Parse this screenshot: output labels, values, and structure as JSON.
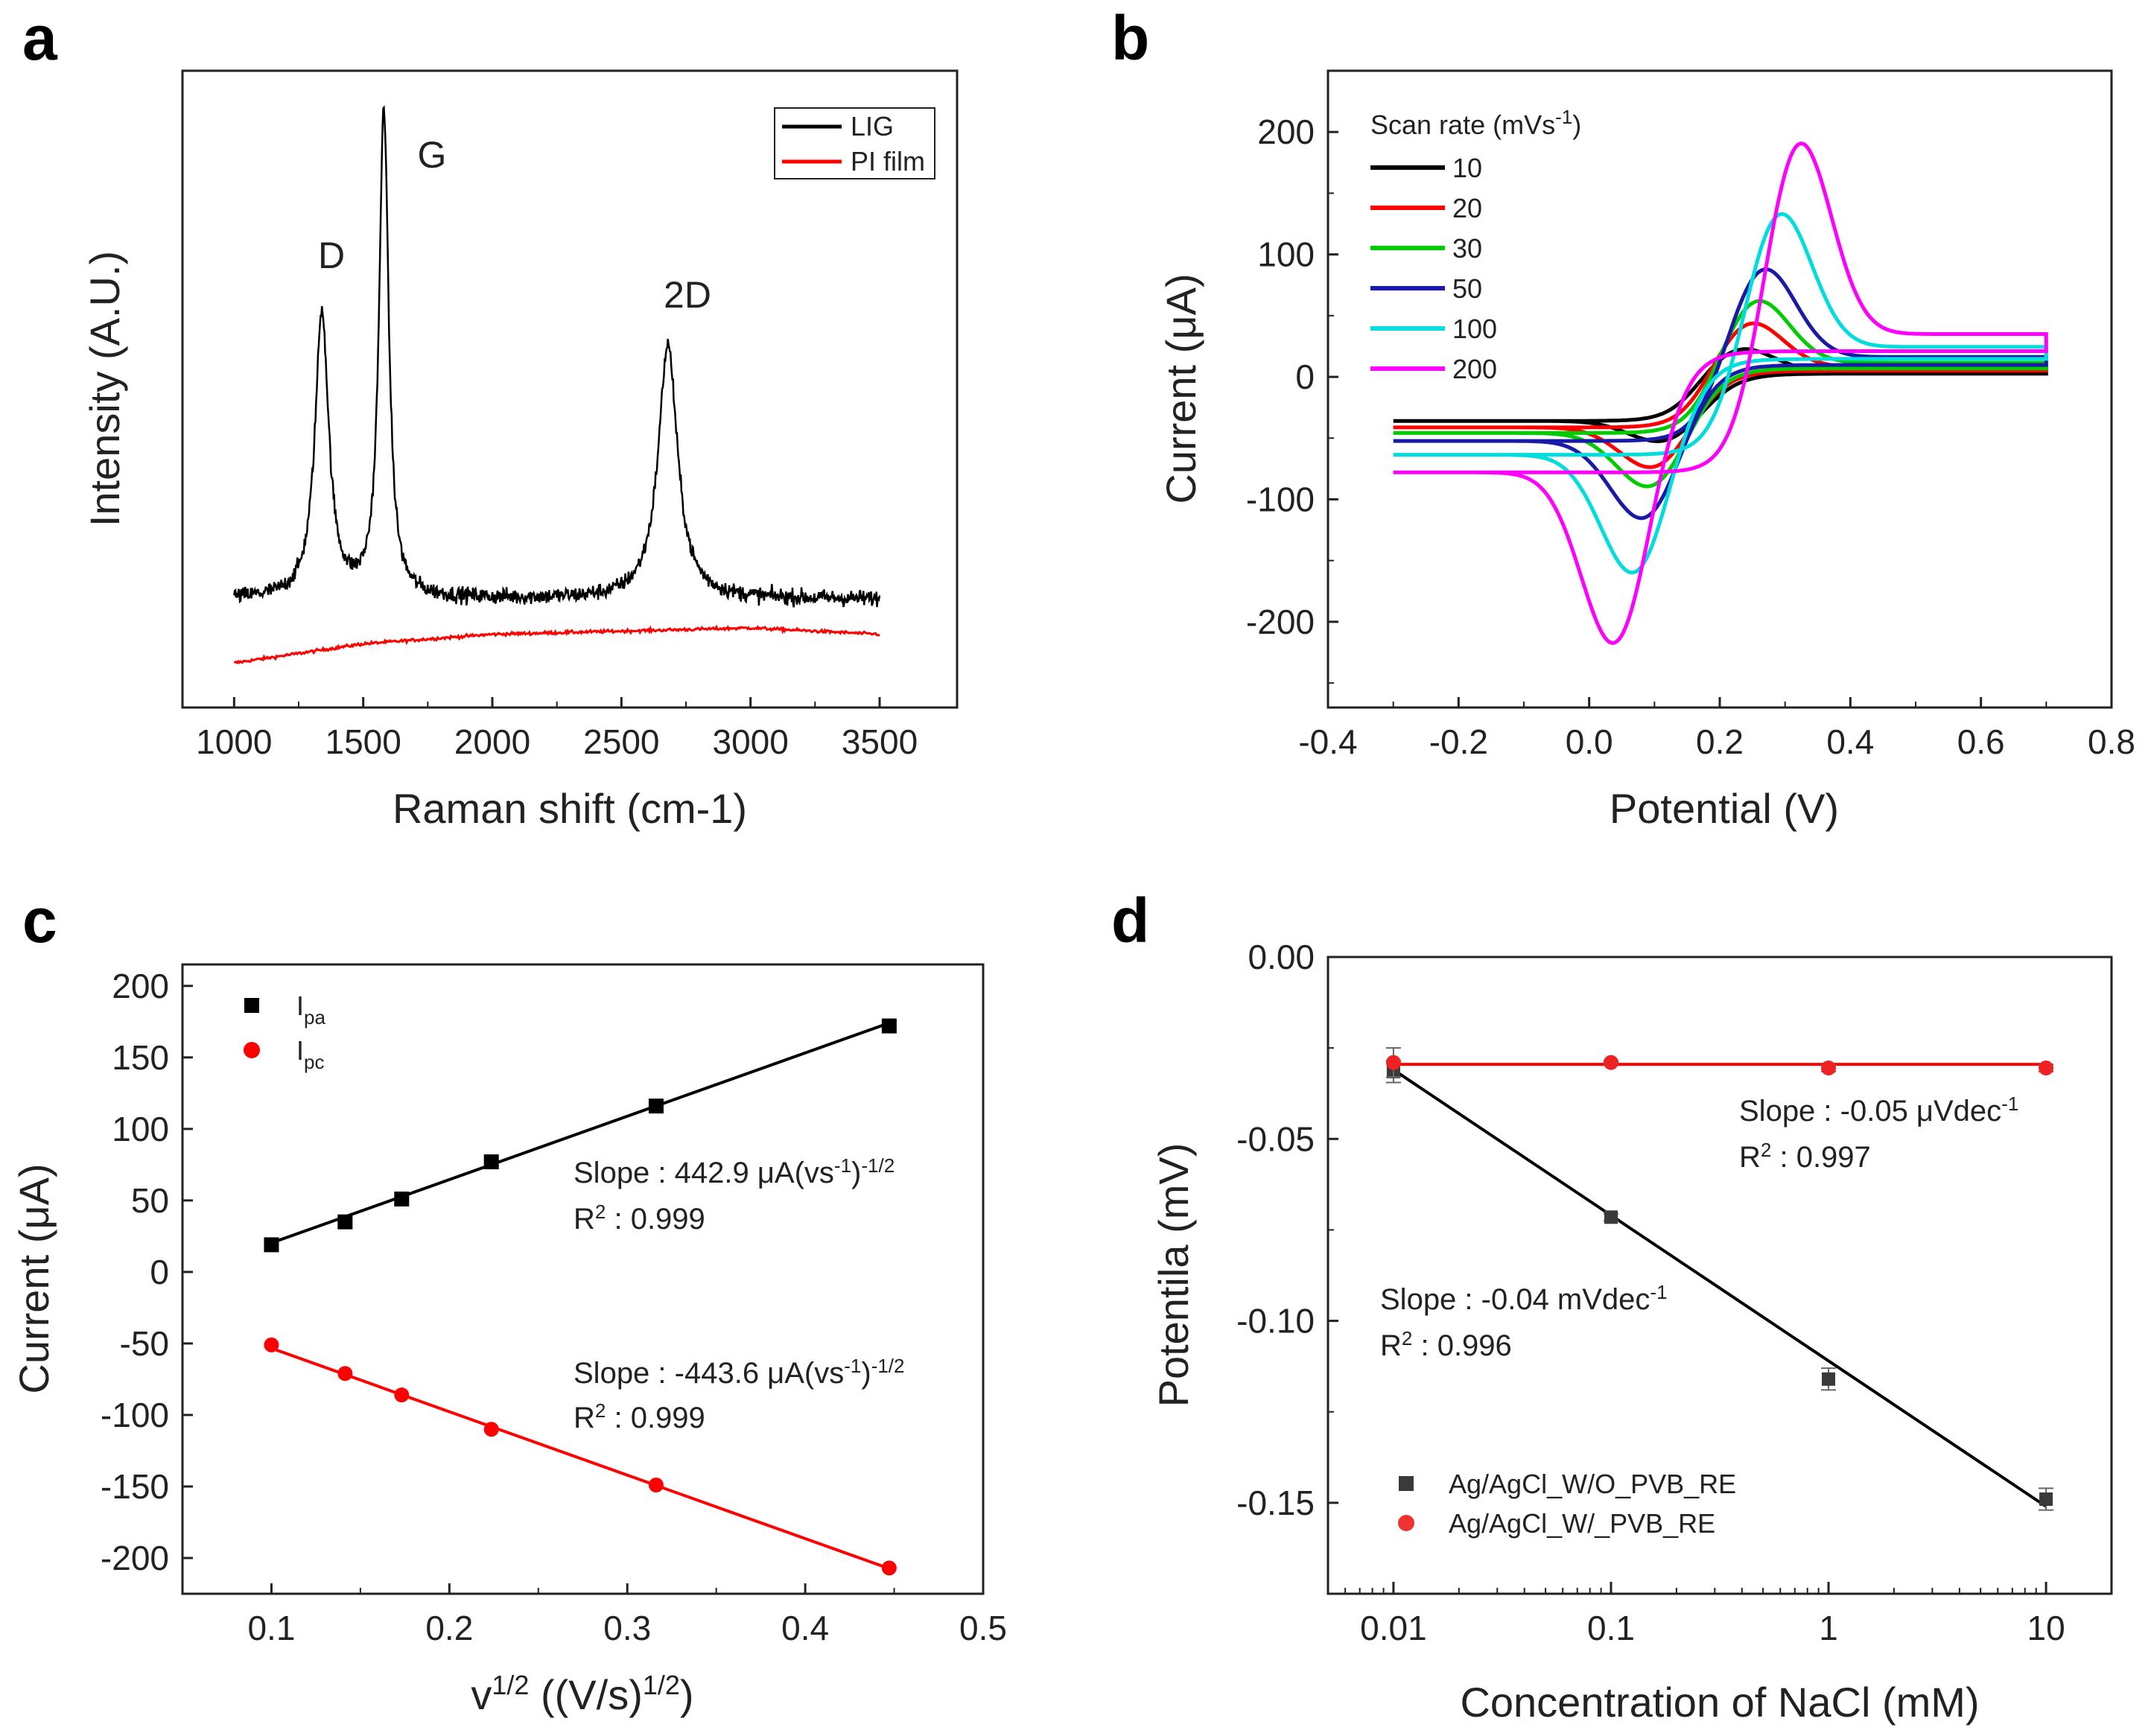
{
  "chart_data": [
    {
      "panel": "a",
      "type": "line",
      "xlabel": "Raman shift (cm-1)",
      "ylabel": "Intensity (A.U.)",
      "xlim": [
        800,
        3800
      ],
      "ylim": [
        0,
        1.0
      ],
      "xticks": [
        1000,
        1500,
        2000,
        2500,
        3000,
        3500
      ],
      "yticks_visible": false,
      "legend": {
        "position": "top-right",
        "boxed": true,
        "entries": [
          "LIG",
          "PI film"
        ]
      },
      "series": [
        {
          "name": "LIG",
          "color": "#000000",
          "noisy": true,
          "baseline": 0.17,
          "peaks": [
            {
              "label": "D",
              "center": 1340,
              "height": 0.62,
              "width": 32
            },
            {
              "label": "G",
              "center": 1580,
              "height": 0.94,
              "width": 22
            },
            {
              "label": "2D",
              "center": 2680,
              "height": 0.57,
              "width": 45
            }
          ]
        },
        {
          "name": "PI film",
          "color": "#ff0000",
          "noisy": true,
          "x": [
            1000,
            1500,
            2000,
            2500,
            3000,
            3500
          ],
          "y": [
            0.07,
            0.1,
            0.115,
            0.12,
            0.125,
            0.115
          ]
        }
      ],
      "annotations": [
        "D",
        "G",
        "2D"
      ]
    },
    {
      "panel": "b",
      "type": "line",
      "xlabel": "Potential (V)",
      "ylabel": "Current (μA)",
      "xlim": [
        -0.4,
        0.8
      ],
      "ylim": [
        -270,
        250
      ],
      "xticks": [
        "-0.4",
        "-0.2",
        "0.0",
        "0.2",
        "0.4",
        "0.6",
        "0.8"
      ],
      "yticks": [
        "-200",
        "-100",
        "0",
        "100",
        "200"
      ],
      "legend": {
        "position": "top-left",
        "title_text": "Scan rate (mVs",
        "title_sup": "-1",
        "title_close": ")",
        "entries": [
          "10",
          "20",
          "30",
          "50",
          "100",
          "200"
        ]
      },
      "series": [
        {
          "name": "10",
          "color": "#000000",
          "Ipa": 25,
          "Epa": 0.23,
          "Ipc": -57,
          "Epc": 0.12
        },
        {
          "name": "20",
          "color": "#ff0000",
          "Ipa": 47,
          "Epa": 0.245,
          "Ipc": -80,
          "Epc": 0.105
        },
        {
          "name": "30",
          "color": "#00cc00",
          "Ipa": 66,
          "Epa": 0.255,
          "Ipc": -97,
          "Epc": 0.1
        },
        {
          "name": "50",
          "color": "#1a1aa8",
          "Ipa": 93,
          "Epa": 0.265,
          "Ipc": -125,
          "Epc": 0.09
        },
        {
          "name": "100",
          "color": "#00dddd",
          "Ipa": 140,
          "Epa": 0.29,
          "Ipc": -173,
          "Epc": 0.075
        },
        {
          "name": "200",
          "color": "#ff00ff",
          "Ipa": 200,
          "Epa": 0.32,
          "Ipc": -235,
          "Epc": 0.045
        }
      ]
    },
    {
      "panel": "c",
      "type": "scatter",
      "xlabel": "v",
      "xlabel_sup": "1/2",
      "xlabel_rest": " ((V/s)",
      "xlabel_sup2": "1/2",
      "xlabel_close": ")",
      "ylabel": "Current (μA)",
      "xlim": [
        0.05,
        0.5
      ],
      "ylim": [
        -225,
        215
      ],
      "xticks": [
        "0.1",
        "0.2",
        "0.3",
        "0.4",
        "0.5"
      ],
      "yticks": [
        "-200",
        "-150",
        "-100",
        "-50",
        "0",
        "50",
        "100",
        "150",
        "200"
      ],
      "legend": {
        "position": "top-left",
        "entries": [
          {
            "main": "I",
            "sub": "pa"
          },
          {
            "main": "I",
            "sub": "pc"
          }
        ]
      },
      "series": [
        {
          "name": "Ipa",
          "color": "#000000",
          "marker": "square",
          "x": [
            0.1,
            0.1414,
            0.1732,
            0.2236,
            0.3162,
            0.4472
          ],
          "y": [
            19,
            35,
            51,
            77,
            116,
            172
          ],
          "fit": {
            "slope": 442.9,
            "intercept": -24
          }
        },
        {
          "name": "Ipc",
          "color": "#ff0000",
          "marker": "circle",
          "x": [
            0.1,
            0.1414,
            0.1732,
            0.2236,
            0.3162,
            0.4472
          ],
          "y": [
            -51,
            -71,
            -86,
            -110,
            -149,
            -207
          ],
          "fit": {
            "slope": -443.6,
            "intercept": -9
          }
        }
      ],
      "annotations": [
        {
          "line1_text": "Slope : 442.9 μA(vs",
          "line1_sup": "-1",
          "line1_close": ")",
          "line1_sup2": "-1/2",
          "line2_text": "R",
          "line2_sup": "2",
          "line2_rest": " : 0.999"
        },
        {
          "line1_text": "Slope : -443.6 μA(vs",
          "line1_sup": "-1",
          "line1_close": ")",
          "line1_sup2": "-1/2",
          "line2_text": "R",
          "line2_sup": "2",
          "line2_rest": " : 0.999"
        }
      ]
    },
    {
      "panel": "d",
      "type": "scatter",
      "xscale": "log",
      "xlabel": "Concentration of NaCl (mM)",
      "ylabel": "Potentila (mV)",
      "xlim": [
        0.005,
        20
      ],
      "ylim": [
        -0.175,
        0.0
      ],
      "xticks": [
        {
          "value": 0.01,
          "label": "0.01"
        },
        {
          "value": 0.1,
          "label": "0.1"
        },
        {
          "value": 1,
          "label": "1"
        },
        {
          "value": 10,
          "label": "10"
        }
      ],
      "yticks": [
        "0.00",
        "-0.05",
        "-0.10",
        "-0.15"
      ],
      "legend": {
        "position": "bottom-left",
        "entries": [
          "Ag/AgCl_W/O_PVB_RE",
          "Ag/AgCl_W/_PVB_RE"
        ]
      },
      "series": [
        {
          "name": "Ag/AgCl_W/O_PVB_RE",
          "color": "#3a3a3a",
          "marker": "square",
          "x": [
            0.01,
            0.1,
            1,
            10
          ],
          "y": [
            -0.0315,
            -0.0715,
            -0.116,
            -0.149
          ],
          "err": [
            0.003,
            0.001,
            0.003,
            0.003
          ],
          "fit": {
            "x": [
              0.01,
              10
            ],
            "y": [
              -0.031,
              -0.151
            ]
          }
        },
        {
          "name": "Ag/AgCl_W/_PVB_RE",
          "color": "#ee2222",
          "marker": "circle",
          "x": [
            0.01,
            0.1,
            1,
            10
          ],
          "y": [
            -0.029,
            -0.029,
            -0.0305,
            -0.0305
          ],
          "err": [
            0.004,
            0.0005,
            0.001,
            0.001
          ],
          "fit": {
            "x": [
              0.01,
              10
            ],
            "y": [
              -0.0295,
              -0.0295
            ]
          }
        }
      ],
      "annotations": [
        {
          "line1_text": "Slope : -0.05 μVdec",
          "line1_sup": "-1",
          "line2_text": "R",
          "line2_sup": "2",
          "line2_rest": " : 0.997"
        },
        {
          "line1_text": "Slope : -0.04 mVdec",
          "line1_sup": "-1",
          "line2_text": "R",
          "line2_sup": "2",
          "line2_rest": " : 0.996"
        }
      ]
    }
  ]
}
